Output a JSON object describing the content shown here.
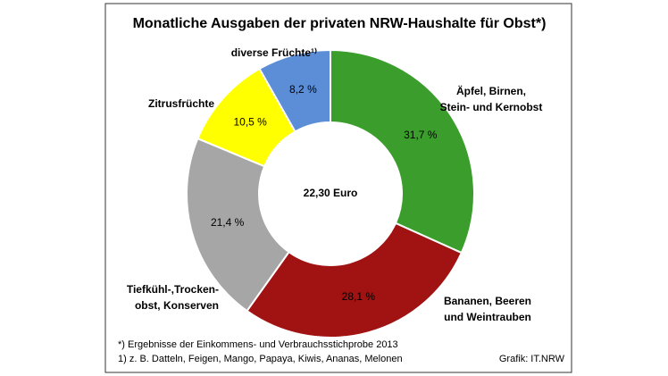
{
  "chart_data": {
    "type": "donut",
    "title": "Monatliche Ausgaben der privaten NRW-Haushalte für Obst*)",
    "center_label": "22,30 Euro",
    "categories": [
      "Äpfel, Birnen,\nStein- und Kernobst",
      "Bananen, Beeren\nund Weintrauben",
      "Tiefkühl-,Trocken-\nobst, Konserven",
      "Zitrusfrüchte",
      "diverse Früchte¹⁾"
    ],
    "values": [
      31.7,
      28.1,
      21.4,
      10.5,
      8.2
    ],
    "value_labels": [
      "31,7 %",
      "28,1 %",
      "21,4 %",
      "10,5 %",
      "8,2 %"
    ],
    "colors": [
      "#3b9e2c",
      "#a11212",
      "#a6a6a6",
      "#ffff00",
      "#5b8ed6"
    ],
    "footnotes": [
      "*) Ergebnisse der Einkommens- und Verbrauchsstichprobe 2013",
      "1) z. B. Datteln, Feigen, Mango, Papaya, Kiwis, Ananas, Melonen"
    ],
    "source": "Grafik: IT.NRW"
  }
}
